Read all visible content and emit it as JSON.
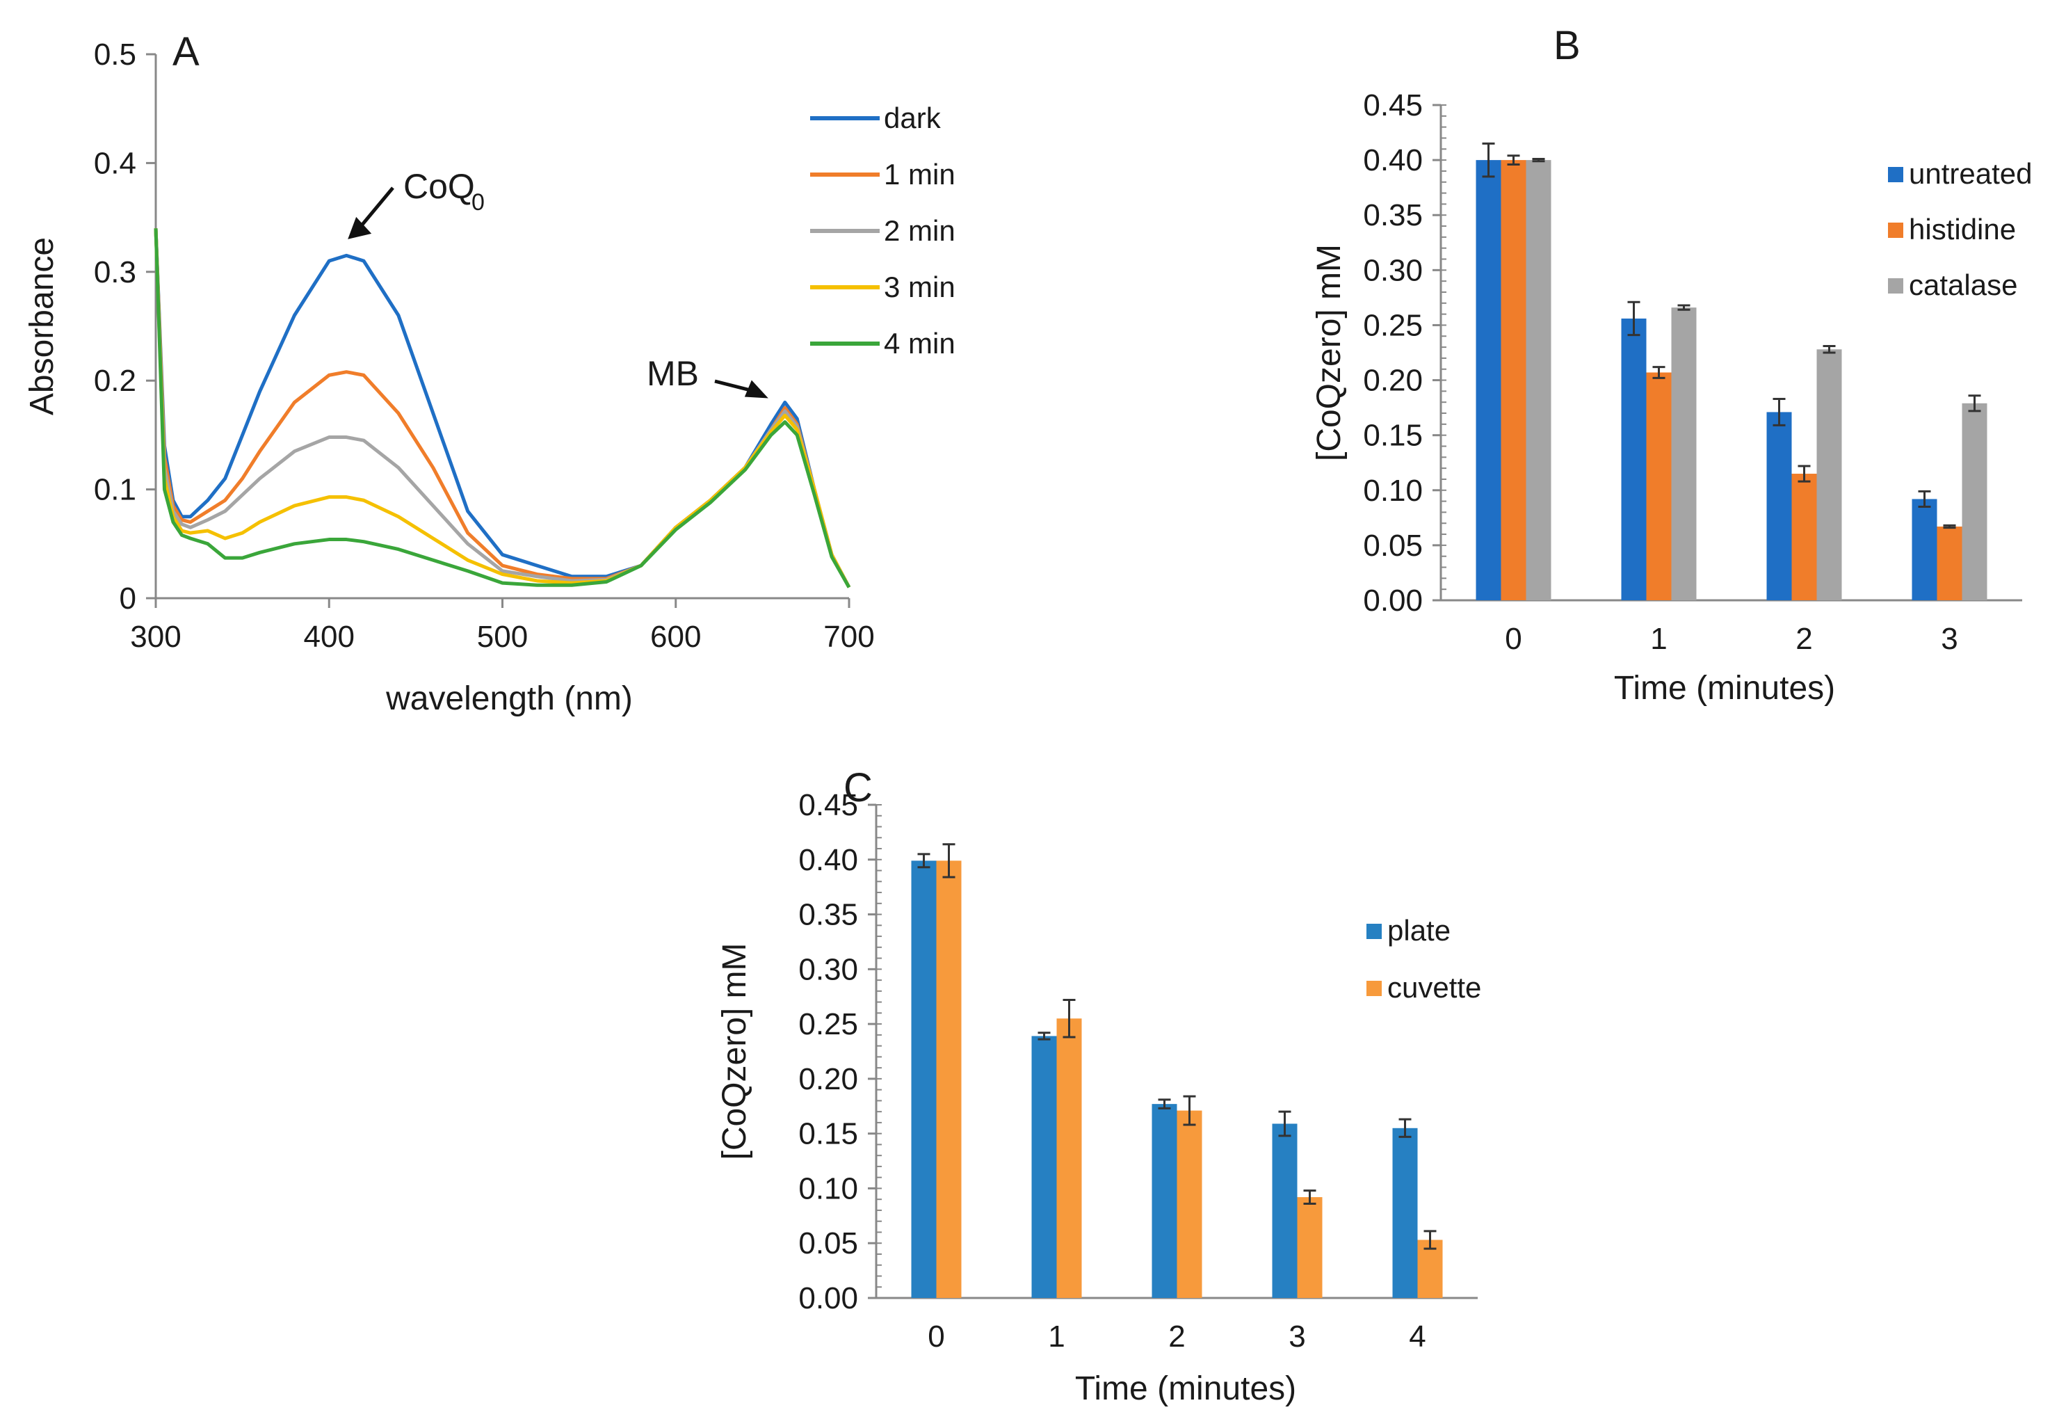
{
  "chart_data": [
    {
      "panel": "A",
      "type": "line",
      "xlabel": "wavelength  (nm)",
      "ylabel": "Absorbance",
      "xlim": [
        300,
        700
      ],
      "ylim": [
        0,
        0.5
      ],
      "xticks": [
        300,
        400,
        500,
        600,
        700
      ],
      "yticks": [
        0,
        0.1,
        0.2,
        0.3,
        0.4,
        0.5
      ],
      "ytick_labels": [
        "0",
        "0.1",
        "0.2",
        "0.3",
        "0.4",
        "0.5"
      ],
      "legend": "top-right",
      "x": [
        300,
        305,
        310,
        315,
        320,
        330,
        340,
        350,
        360,
        380,
        400,
        410,
        420,
        440,
        460,
        480,
        500,
        520,
        540,
        560,
        580,
        600,
        620,
        640,
        655,
        663,
        670,
        680,
        690,
        700
      ],
      "series": [
        {
          "name": "dark",
          "color": "#1f6fc5",
          "values": [
            0.34,
            0.14,
            0.09,
            0.075,
            0.075,
            0.09,
            0.11,
            0.15,
            0.19,
            0.26,
            0.31,
            0.315,
            0.31,
            0.26,
            0.17,
            0.08,
            0.04,
            0.03,
            0.02,
            0.02,
            0.03,
            0.065,
            0.09,
            0.12,
            0.16,
            0.18,
            0.165,
            0.1,
            0.04,
            0.01
          ]
        },
        {
          "name": "1 min",
          "color": "#f07d2a",
          "values": [
            0.34,
            0.13,
            0.085,
            0.072,
            0.07,
            0.08,
            0.09,
            0.11,
            0.135,
            0.18,
            0.205,
            0.208,
            0.205,
            0.17,
            0.12,
            0.06,
            0.03,
            0.022,
            0.018,
            0.018,
            0.03,
            0.065,
            0.09,
            0.12,
            0.155,
            0.175,
            0.16,
            0.1,
            0.04,
            0.01
          ]
        },
        {
          "name": "2 min",
          "color": "#a5a5a5",
          "values": [
            0.34,
            0.12,
            0.08,
            0.068,
            0.065,
            0.072,
            0.08,
            0.095,
            0.11,
            0.135,
            0.148,
            0.148,
            0.145,
            0.12,
            0.085,
            0.05,
            0.025,
            0.02,
            0.016,
            0.017,
            0.03,
            0.065,
            0.09,
            0.12,
            0.155,
            0.172,
            0.158,
            0.1,
            0.04,
            0.01
          ]
        },
        {
          "name": "3 min",
          "color": "#f5c000",
          "values": [
            0.34,
            0.11,
            0.075,
            0.062,
            0.06,
            0.062,
            0.055,
            0.06,
            0.07,
            0.085,
            0.093,
            0.093,
            0.09,
            0.075,
            0.055,
            0.035,
            0.022,
            0.016,
            0.014,
            0.016,
            0.03,
            0.065,
            0.09,
            0.12,
            0.153,
            0.168,
            0.155,
            0.1,
            0.04,
            0.01
          ]
        },
        {
          "name": "4 min",
          "color": "#3aa63a",
          "values": [
            0.34,
            0.1,
            0.07,
            0.058,
            0.055,
            0.05,
            0.037,
            0.037,
            0.042,
            0.05,
            0.054,
            0.054,
            0.052,
            0.045,
            0.035,
            0.025,
            0.014,
            0.012,
            0.012,
            0.015,
            0.03,
            0.063,
            0.088,
            0.118,
            0.15,
            0.162,
            0.15,
            0.095,
            0.038,
            0.01
          ]
        }
      ],
      "annotations": [
        {
          "text": "CoQ",
          "subscript": "0",
          "target_x": 410,
          "target_y": 0.33
        },
        {
          "text": "MB",
          "target_x": 655,
          "target_y": 0.18
        }
      ]
    },
    {
      "panel": "B",
      "type": "bar",
      "xlabel": "Time (minutes)",
      "ylabel": "[CoQzero] mM",
      "categories": [
        "0",
        "1",
        "2",
        "3"
      ],
      "ylim": [
        0,
        0.45
      ],
      "yticks": [
        0,
        0.05,
        0.1,
        0.15,
        0.2,
        0.25,
        0.3,
        0.35,
        0.4,
        0.45
      ],
      "ytick_labels": [
        "0.00",
        "0.05",
        "0.10",
        "0.15",
        "0.20",
        "0.25",
        "0.30",
        "0.35",
        "0.40",
        "0.45"
      ],
      "legend": "top-right",
      "series": [
        {
          "name": "untreated",
          "color": "#1f6fc5",
          "values": [
            0.4,
            0.256,
            0.171,
            0.092
          ],
          "errors": [
            0.015,
            0.015,
            0.012,
            0.007
          ]
        },
        {
          "name": "histidine",
          "color": "#f07d2a",
          "values": [
            0.4,
            0.207,
            0.115,
            0.067
          ],
          "errors": [
            0.004,
            0.005,
            0.007,
            0.001
          ]
        },
        {
          "name": "catalase",
          "color": "#a5a5a5",
          "values": [
            0.4,
            0.266,
            0.228,
            0.179
          ],
          "errors": [
            0.001,
            0.002,
            0.003,
            0.007
          ]
        }
      ]
    },
    {
      "panel": "C",
      "type": "bar",
      "xlabel": "Time (minutes)",
      "ylabel": "[CoQzero] mM",
      "categories": [
        "0",
        "1",
        "2",
        "3",
        "4"
      ],
      "ylim": [
        0,
        0.45
      ],
      "yticks": [
        0,
        0.05,
        0.1,
        0.15,
        0.2,
        0.25,
        0.3,
        0.35,
        0.4,
        0.45
      ],
      "ytick_labels": [
        "0.00",
        "0.05",
        "0.10",
        "0.15",
        "0.20",
        "0.25",
        "0.30",
        "0.35",
        "0.40",
        "0.45"
      ],
      "legend": "right",
      "series": [
        {
          "name": "plate",
          "color": "#2680c2",
          "values": [
            0.399,
            0.239,
            0.177,
            0.159,
            0.155
          ],
          "errors": [
            0.006,
            0.003,
            0.004,
            0.011,
            0.008
          ]
        },
        {
          "name": "cuvette",
          "color": "#f79a3c",
          "values": [
            0.399,
            0.255,
            0.171,
            0.092,
            0.053
          ],
          "errors": [
            0.015,
            0.017,
            0.013,
            0.006,
            0.008
          ]
        }
      ]
    }
  ]
}
